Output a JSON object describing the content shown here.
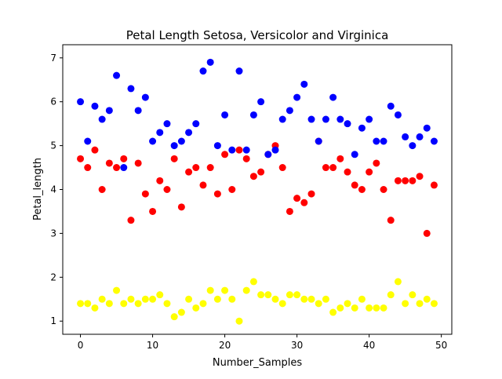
{
  "chart_data": {
    "type": "scatter",
    "title": "Petal Length Setosa, Versicolor and Virginica",
    "xlabel": "Number_Samples",
    "ylabel": "Petal_length",
    "xlim": [
      -2.45,
      51.45
    ],
    "ylim": [
      0.7,
      7.3
    ],
    "xticks": [
      0,
      10,
      20,
      30,
      40,
      50
    ],
    "yticks": [
      1,
      2,
      3,
      4,
      5,
      6,
      7
    ],
    "grid": false,
    "x": [
      0,
      1,
      2,
      3,
      4,
      5,
      6,
      7,
      8,
      9,
      10,
      11,
      12,
      13,
      14,
      15,
      16,
      17,
      18,
      19,
      20,
      21,
      22,
      23,
      24,
      25,
      26,
      27,
      28,
      29,
      30,
      31,
      32,
      33,
      34,
      35,
      36,
      37,
      38,
      39,
      40,
      41,
      42,
      43,
      44,
      45,
      46,
      47,
      48,
      49
    ],
    "series": [
      {
        "color": "#ffff00",
        "values": [
          1.4,
          1.4,
          1.3,
          1.5,
          1.4,
          1.7,
          1.4,
          1.5,
          1.4,
          1.5,
          1.5,
          1.6,
          1.4,
          1.1,
          1.2,
          1.5,
          1.3,
          1.4,
          1.7,
          1.5,
          1.7,
          1.5,
          1.0,
          1.7,
          1.9,
          1.6,
          1.6,
          1.5,
          1.4,
          1.6,
          1.6,
          1.5,
          1.5,
          1.4,
          1.5,
          1.2,
          1.3,
          1.4,
          1.3,
          1.5,
          1.3,
          1.3,
          1.3,
          1.6,
          1.9,
          1.4,
          1.6,
          1.4,
          1.5,
          1.4
        ]
      },
      {
        "color": "#ff0000",
        "values": [
          4.7,
          4.5,
          4.9,
          4.0,
          4.6,
          4.5,
          4.7,
          3.3,
          4.6,
          3.9,
          3.5,
          4.2,
          4.0,
          4.7,
          3.6,
          4.4,
          4.5,
          4.1,
          4.5,
          3.9,
          4.8,
          4.0,
          4.9,
          4.7,
          4.3,
          4.4,
          4.8,
          5.0,
          4.5,
          3.5,
          3.8,
          3.7,
          3.9,
          5.1,
          4.5,
          4.5,
          4.7,
          4.4,
          4.1,
          4.0,
          4.4,
          4.6,
          4.0,
          3.3,
          4.2,
          4.2,
          4.2,
          4.3,
          3.0,
          4.1
        ]
      },
      {
        "color": "#0000ff",
        "values": [
          6.0,
          5.1,
          5.9,
          5.6,
          5.8,
          6.6,
          4.5,
          6.3,
          5.8,
          6.1,
          5.1,
          5.3,
          5.5,
          5.0,
          5.1,
          5.3,
          5.5,
          6.7,
          6.9,
          5.0,
          5.7,
          4.9,
          6.7,
          4.9,
          5.7,
          6.0,
          4.8,
          4.9,
          5.6,
          5.8,
          6.1,
          6.4,
          5.6,
          5.1,
          5.6,
          6.1,
          5.6,
          5.5,
          4.8,
          5.4,
          5.6,
          5.1,
          5.1,
          5.9,
          5.7,
          5.2,
          5.0,
          5.2,
          5.4,
          5.1
        ]
      }
    ]
  }
}
